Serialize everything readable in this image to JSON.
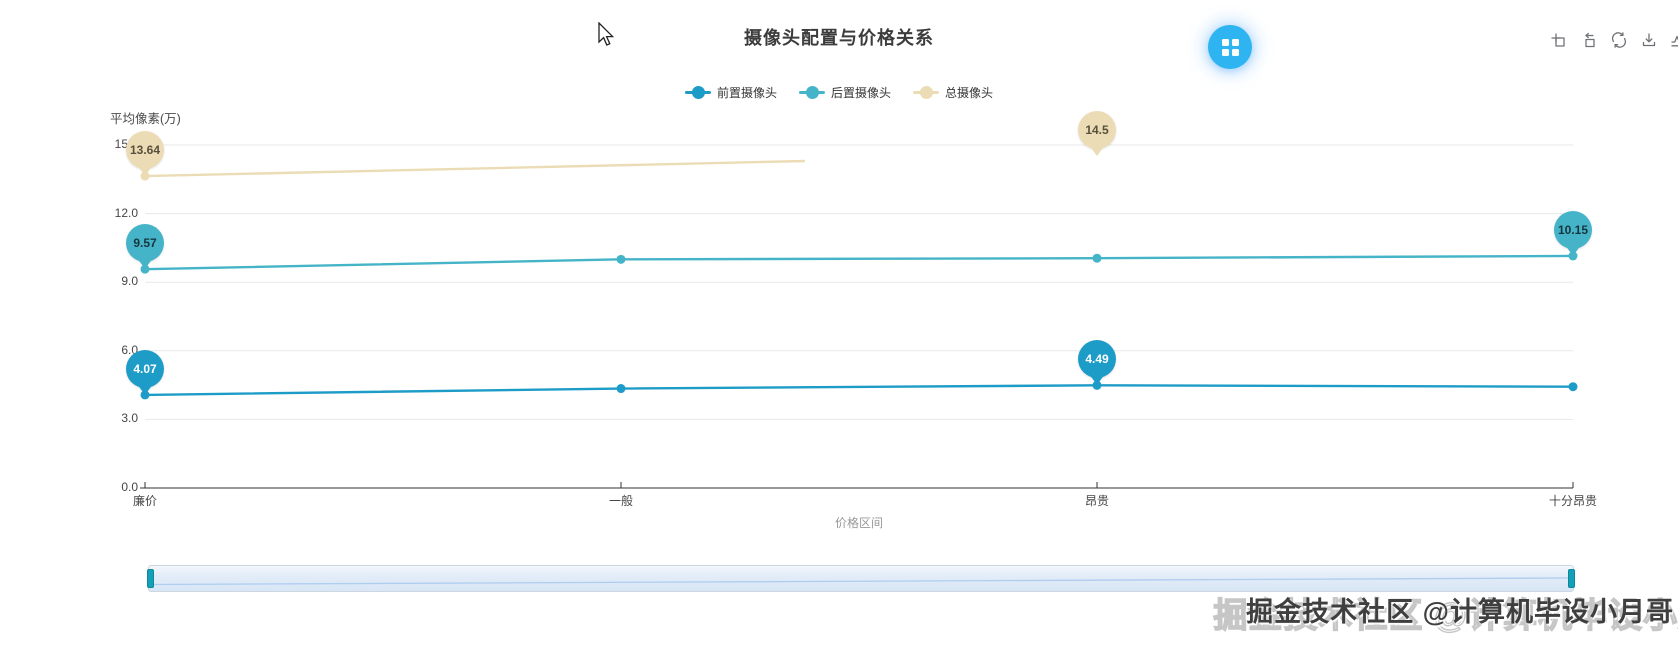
{
  "header": {
    "title": "摄像头配置与价格关系"
  },
  "menu_button": {
    "icon": "grid-icon",
    "color": "#2db4f1"
  },
  "toolbox": {
    "color": "#6f7276",
    "icons": [
      {
        "name": "zoom-select-icon"
      },
      {
        "name": "zoom-reset-icon"
      },
      {
        "name": "restore-icon"
      },
      {
        "name": "save-image-icon"
      },
      {
        "name": "line-type-icon"
      }
    ]
  },
  "chart_data": {
    "type": "line",
    "title": "摄像头配置与价格关系",
    "categories": [
      "廉价",
      "一般",
      "昂贵",
      "十分昂贵"
    ],
    "xlabel": "价格区间",
    "ylabel": "平均像素(万)",
    "ylim": [
      0,
      15
    ],
    "ytick_labels": [
      "0.0",
      "3.0",
      "6.0",
      "9.0",
      "12.0",
      "15.0"
    ],
    "grid": true,
    "legend_position": "top",
    "series": [
      {
        "name": "前置摄像头",
        "color": "#1e9cc8",
        "values": [
          4.07,
          4.35,
          4.49,
          4.43
        ],
        "point_labels": [
          {
            "index": 0,
            "text": "4.07"
          },
          {
            "index": 2,
            "text": "4.49"
          }
        ],
        "label_text_color": "#ffffff"
      },
      {
        "name": "后置摄像头",
        "color": "#46b4c8",
        "values": [
          9.57,
          10.0,
          10.05,
          10.15
        ],
        "point_labels": [
          {
            "index": 0,
            "text": "9.57"
          },
          {
            "index": 3,
            "text": "10.15"
          }
        ],
        "label_text_color": "#17353f"
      },
      {
        "name": "总摄像头",
        "color": "#ecdcb6",
        "values": [
          13.64,
          null,
          14.5,
          null
        ],
        "point_labels": [
          {
            "index": 0,
            "text": "13.64"
          },
          {
            "index": 2,
            "text": "14.5"
          }
        ],
        "label_text_color": "#57503c",
        "partial_line": true
      }
    ]
  },
  "datazoom": {
    "handle_color": "#14a0b6"
  },
  "watermark": {
    "text": "掘金技术社区 @计算机毕设小月哥"
  }
}
